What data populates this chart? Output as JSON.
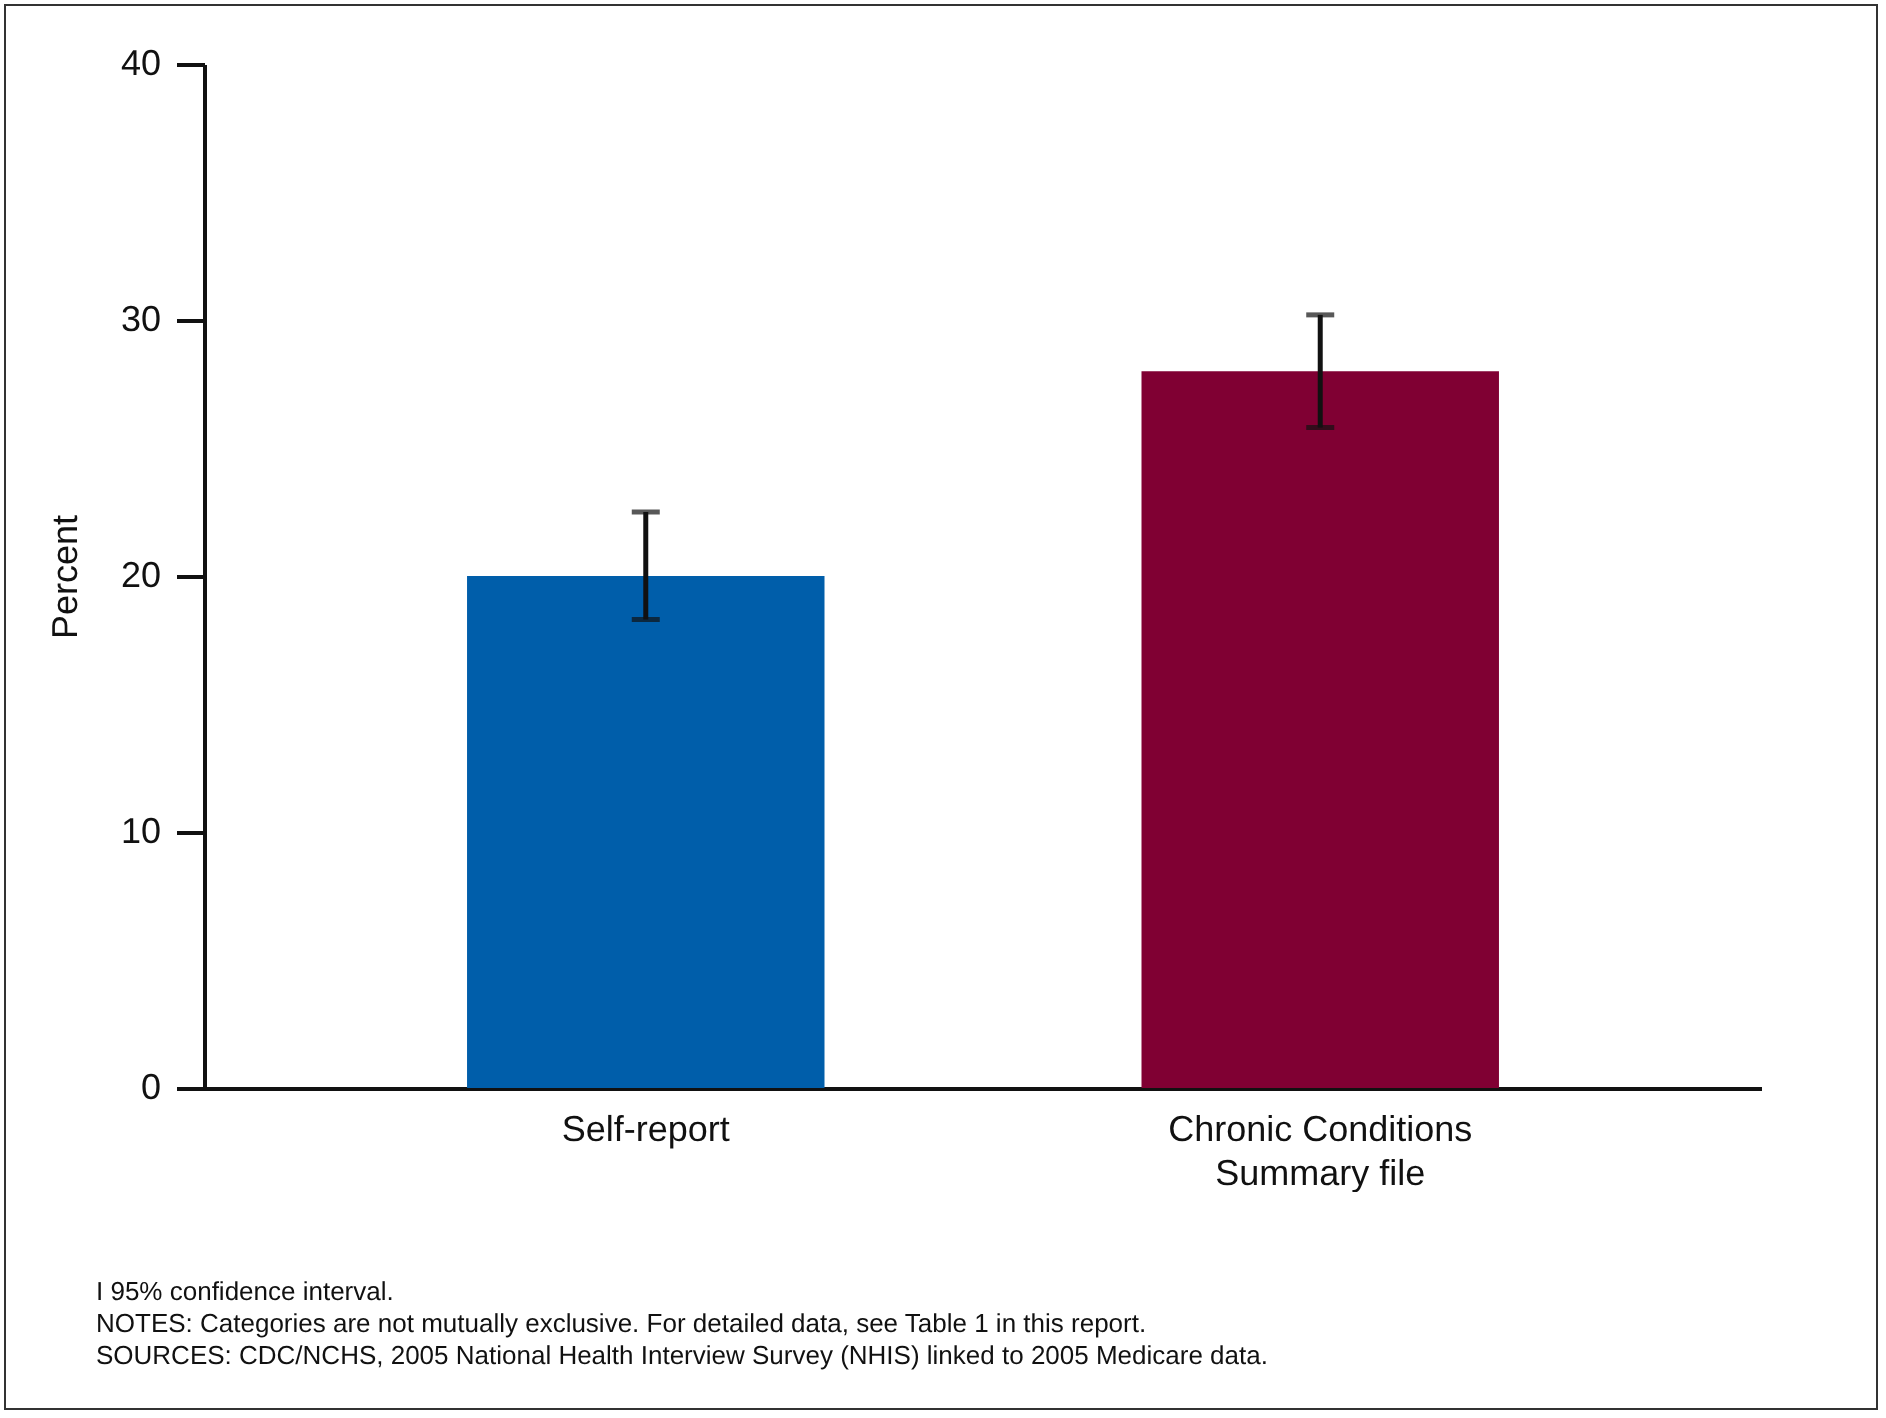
{
  "chart_data": {
    "type": "bar",
    "ylabel": "Percent",
    "categories": [
      "Self-report",
      "Chronic Conditions Summary file"
    ],
    "values": [
      20.0,
      28.0
    ],
    "colors": [
      "#005eaa",
      "#800033"
    ],
    "errors": [
      [
        18.3,
        22.5
      ],
      [
        25.8,
        30.2
      ]
    ],
    "ylim": [
      0,
      40
    ],
    "yticks": [
      0,
      10,
      20,
      30,
      40
    ],
    "grid": false,
    "annotations": [
      "I 95% confidence interval.",
      "NOTES: Categories are not mutually exclusive. For detailed data, see Table 1 in this report.",
      "SOURCES: CDC/NCHS, 2005 National Health Interview Survey (NHIS) linked to 2005 Medicare data."
    ]
  }
}
